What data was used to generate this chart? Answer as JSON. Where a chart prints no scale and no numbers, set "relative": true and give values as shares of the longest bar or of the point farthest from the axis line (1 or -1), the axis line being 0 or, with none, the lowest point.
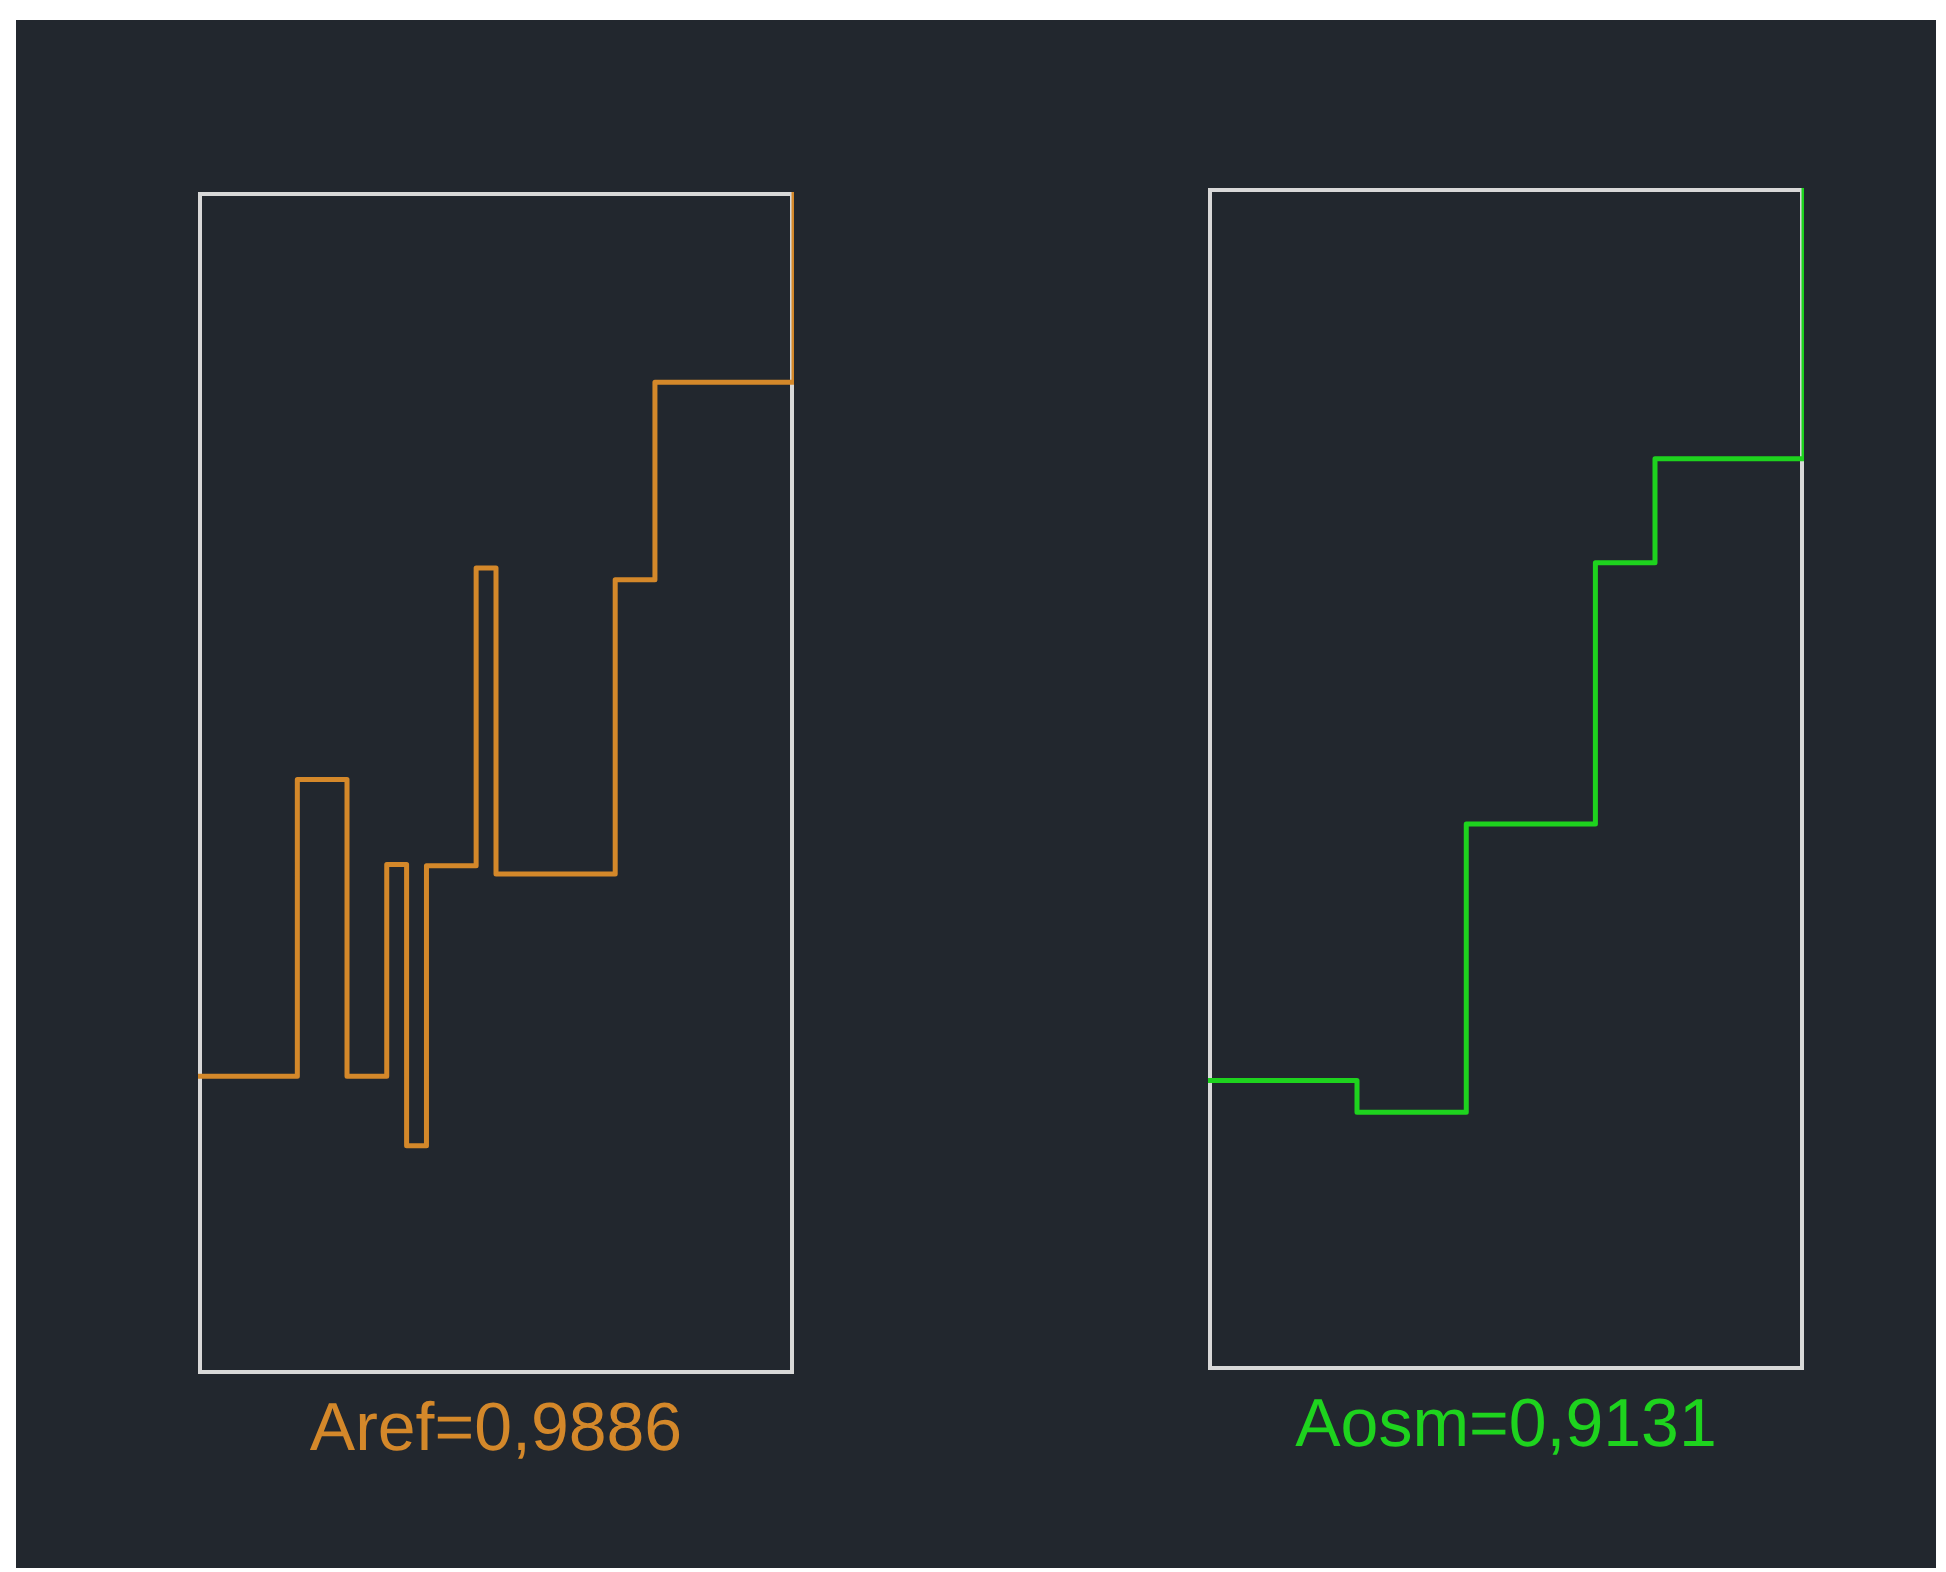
{
  "chart_data": [
    {
      "type": "step",
      "relative": true,
      "categories": [
        null,
        null,
        null,
        null,
        null,
        null,
        null,
        null,
        null,
        null,
        null,
        null,
        null,
        null,
        null,
        null,
        null,
        null,
        null,
        null,
        null,
        null,
        null,
        null,
        null,
        null,
        null,
        null,
        null,
        null,
        null,
        null,
        null,
        null,
        null,
        null,
        null,
        null,
        null,
        null,
        null,
        null,
        null,
        null,
        null,
        null,
        null,
        null,
        null,
        null,
        null,
        null,
        null,
        null,
        null,
        null,
        null,
        null,
        null,
        null,
        null
      ],
      "tick_labels": false,
      "grid": false,
      "xlabel": "Aref=0,9886",
      "series": [
        {
          "color": "#d4882a",
          "values": [
            0.252,
            0.252,
            0.252,
            0.252,
            0.252,
            0.252,
            0.252,
            0.252,
            0.252,
            0.252,
            0.503,
            0.503,
            0.503,
            0.503,
            0.503,
            0.252,
            0.252,
            0.252,
            0.252,
            0.431,
            0.431,
            0.193,
            0.193,
            0.43,
            0.43,
            0.43,
            0.43,
            0.43,
            0.682,
            0.682,
            0.423,
            0.423,
            0.423,
            0.423,
            0.423,
            0.423,
            0.423,
            0.423,
            0.423,
            0.423,
            0.423,
            0.423,
            0.672,
            0.672,
            0.672,
            0.672,
            0.839,
            0.839,
            0.839,
            0.839,
            0.839,
            0.839,
            0.839,
            0.839,
            0.839,
            0.839,
            0.839,
            0.839,
            0.839,
            0.839,
            1
          ]
        }
      ]
    },
    {
      "type": "step",
      "relative": true,
      "categories": [
        null,
        null,
        null,
        null,
        null,
        null,
        null,
        null,
        null,
        null,
        null,
        null,
        null,
        null,
        null,
        null,
        null,
        null,
        null,
        null,
        null,
        null,
        null,
        null,
        null,
        null,
        null,
        null,
        null,
        null,
        null,
        null,
        null,
        null,
        null,
        null,
        null,
        null,
        null,
        null,
        null,
        null,
        null,
        null,
        null,
        null,
        null,
        null,
        null,
        null,
        null,
        null,
        null,
        null,
        null,
        null,
        null,
        null,
        null,
        null,
        null
      ],
      "tick_labels": false,
      "grid": false,
      "xlabel": "Aosm=0,9131",
      "series": [
        {
          "color": "#1ed31e",
          "values": [
            0.245,
            0.245,
            0.245,
            0.245,
            0.245,
            0.245,
            0.245,
            0.245,
            0.245,
            0.245,
            0.245,
            0.245,
            0.245,
            0.245,
            0.245,
            0.218,
            0.218,
            0.218,
            0.218,
            0.218,
            0.218,
            0.218,
            0.218,
            0.218,
            0.218,
            0.218,
            0.462,
            0.462,
            0.462,
            0.462,
            0.462,
            0.462,
            0.462,
            0.462,
            0.462,
            0.462,
            0.462,
            0.462,
            0.462,
            0.683,
            0.683,
            0.683,
            0.683,
            0.683,
            0.683,
            0.771,
            0.771,
            0.771,
            0.771,
            0.771,
            0.771,
            0.771,
            0.771,
            0.771,
            0.771,
            0.771,
            0.771,
            0.771,
            0.771,
            0.771,
            1
          ]
        }
      ]
    }
  ]
}
